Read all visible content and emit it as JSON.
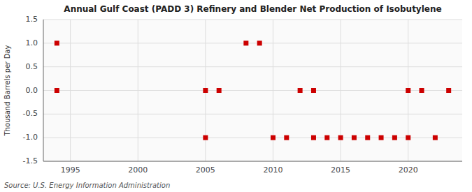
{
  "chart_data": {
    "type": "scatter",
    "title": "Annual Gulf Coast (PADD 3) Refinery and Blender Net Production of Isobutylene",
    "y_label": "Thousand Barrels per Day",
    "source": "Source: U.S. Energy Information Administration",
    "x": [
      1994,
      1994,
      2005,
      2005,
      2006,
      2008,
      2009,
      2010,
      2011,
      2012,
      2013,
      2013,
      2014,
      2015,
      2016,
      2017,
      2018,
      2019,
      2020,
      2020,
      2021,
      2022,
      2023
    ],
    "values": [
      1.0,
      0.0,
      -1.0,
      0.0,
      0.0,
      1.0,
      1.0,
      -1.0,
      -1.0,
      0.0,
      0.0,
      -1.0,
      -1.0,
      -1.0,
      -1.0,
      -1.0,
      -1.0,
      -1.0,
      -1.0,
      0.0,
      0.0,
      -1.0,
      0.0
    ],
    "color": "#cc0000",
    "marker": "square",
    "xlim": [
      1993.0,
      2024.0
    ],
    "ylim": [
      -1.5,
      1.5
    ],
    "xticks": [
      1995,
      2000,
      2005,
      2010,
      2015,
      2020
    ],
    "yticks": [
      -1.5,
      {
        "value": -1.0,
        "label": "-1.0"
      },
      -0.5,
      {
        "value": 0.0,
        "label": "0.0"
      },
      0.5,
      {
        "value": 1.0,
        "label": "1.0"
      },
      1.5
    ],
    "grid": true
  }
}
